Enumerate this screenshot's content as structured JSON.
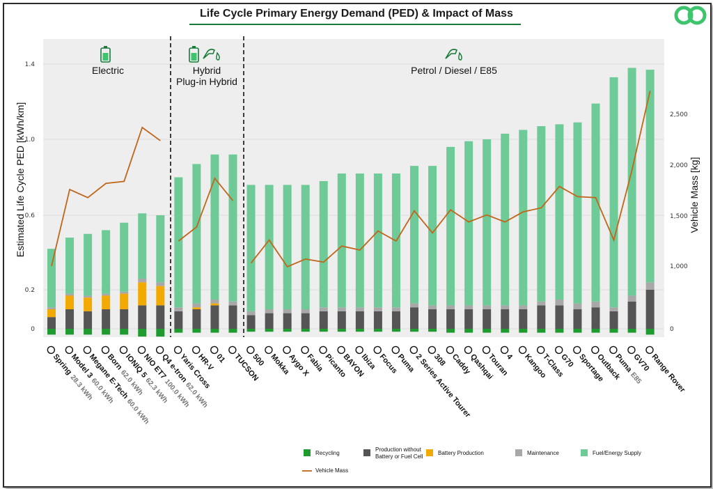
{
  "title": "Life Cycle Primary Energy Demand (PED) & Impact of Mass",
  "colors": {
    "recycling": "#1e9a2e",
    "production": "#555555",
    "battery": "#f2a900",
    "maintenance": "#a8a8a8",
    "fuel": "#6ecb98",
    "mass_line": "#c0651a",
    "panel_bg": "#eeeeee",
    "brand_green": "#1a7a3a"
  },
  "sections": [
    {
      "label": "Electric",
      "icon": "battery-icon",
      "start": 0,
      "end": 6
    },
    {
      "label": "Hybrid\nPlug-in Hybrid",
      "icon": "battery-fuel-icon",
      "start": 7,
      "end": 10
    },
    {
      "label": "Petrol / Diesel / E85",
      "icon": "fuel-nozzle-icon",
      "start": 11,
      "end": 33
    }
  ],
  "chart_data": {
    "type": "bar",
    "stacked": true,
    "xlabel": "",
    "ylabel": "Estimated Life Cycle PED [kWh/km]",
    "y2label": "Vehicle Mass [kg]",
    "yticks": [
      "0",
      "0.2",
      "0.6",
      "1.0",
      "1.4"
    ],
    "ytick_values": [
      0,
      0.2,
      0.6,
      1.0,
      1.4
    ],
    "y2ticks": [
      "0",
      "1,000",
      "1,500",
      "2,000",
      "2,500"
    ],
    "y2tick_values": [
      0,
      1000,
      1500,
      2000,
      2500
    ],
    "y2lim": [
      0,
      3000
    ],
    "grid": true,
    "legend_position": "bottom-right",
    "categories": [
      {
        "brand_icon": "dacia-logo",
        "name": "Spring",
        "sub": "28.3 kWh"
      },
      {
        "brand_icon": "tesla-logo",
        "name": "Model 3",
        "sub": "60.0 kWh"
      },
      {
        "brand_icon": "renault-logo",
        "name": "Megane E-Tech",
        "sub": "60.0 kWh"
      },
      {
        "brand_icon": "cupra-logo",
        "name": "Born",
        "sub": "62.0 kWh"
      },
      {
        "brand_icon": "hyundai-logo",
        "name": "IONIQ 5",
        "sub": "62.3 kWh"
      },
      {
        "brand_icon": "nio-logo",
        "name": "NIO ET7",
        "sub": "100.0 kWh"
      },
      {
        "brand_icon": "audi-logo",
        "name": "Q4 e-tron",
        "sub": "62.0 kWh"
      },
      {
        "brand_icon": "toyota-logo",
        "name": "Yaris Cross",
        "sub": ""
      },
      {
        "brand_icon": "honda-logo",
        "name": "HR-V",
        "sub": ""
      },
      {
        "brand_icon": "lynkco-logo",
        "name": "01",
        "sub": ""
      },
      {
        "brand_icon": "hyundai-logo",
        "name": "TUCSON",
        "sub": ""
      },
      {
        "brand_icon": "fiat-logo",
        "name": "500",
        "sub": ""
      },
      {
        "brand_icon": "opel-logo",
        "name": "Mokka",
        "sub": ""
      },
      {
        "brand_icon": "toyota-logo",
        "name": "Aygo X",
        "sub": ""
      },
      {
        "brand_icon": "skoda-logo",
        "name": "Fabia",
        "sub": ""
      },
      {
        "brand_icon": "kia-logo",
        "name": "Picanto",
        "sub": ""
      },
      {
        "brand_icon": "hyundai-logo",
        "name": "BAYON",
        "sub": ""
      },
      {
        "brand_icon": "seat-logo",
        "name": "Ibiza",
        "sub": ""
      },
      {
        "brand_icon": "ford-logo",
        "name": "Focus",
        "sub": ""
      },
      {
        "brand_icon": "ford-logo",
        "name": "Puma",
        "sub": ""
      },
      {
        "brand_icon": "bmw-logo",
        "name": "2 Series Active Tourer",
        "sub": ""
      },
      {
        "brand_icon": "peugeot-logo",
        "name": "308",
        "sub": ""
      },
      {
        "brand_icon": "vw-logo",
        "name": "Caddy",
        "sub": ""
      },
      {
        "brand_icon": "nissan-logo",
        "name": "Qashqai",
        "sub": ""
      },
      {
        "brand_icon": "vw-logo",
        "name": "Touran",
        "sub": ""
      },
      {
        "brand_icon": "bmw-m-logo",
        "name": "4",
        "sub": ""
      },
      {
        "brand_icon": "renault-logo",
        "name": "Kangoo",
        "sub": ""
      },
      {
        "brand_icon": "mercedes-logo",
        "name": "T-Class",
        "sub": ""
      },
      {
        "brand_icon": "genesis-logo",
        "name": "G70",
        "sub": ""
      },
      {
        "brand_icon": "kia-logo",
        "name": "Sportage",
        "sub": ""
      },
      {
        "brand_icon": "subaru-logo",
        "name": "Outback",
        "sub": ""
      },
      {
        "brand_icon": "ford-logo",
        "name": "Puma",
        "sub": "E85"
      },
      {
        "brand_icon": "genesis-logo",
        "name": "GV70",
        "sub": ""
      },
      {
        "brand_icon": "landrover-logo",
        "name": "Range Rover",
        "sub": ""
      }
    ],
    "series": [
      {
        "name": "Recycling",
        "key": "recycling",
        "values": [
          -0.03,
          -0.03,
          -0.03,
          -0.03,
          -0.03,
          -0.04,
          -0.04,
          -0.02,
          -0.02,
          -0.02,
          -0.02,
          -0.015,
          -0.015,
          -0.015,
          -0.015,
          -0.015,
          -0.015,
          -0.015,
          -0.015,
          -0.015,
          -0.015,
          -0.015,
          -0.02,
          -0.02,
          -0.02,
          -0.02,
          -0.02,
          -0.02,
          -0.02,
          -0.02,
          -0.02,
          -0.02,
          -0.02,
          -0.03
        ]
      },
      {
        "name": "Production without Battery or Fuel Cell",
        "key": "production",
        "values": [
          0.06,
          0.1,
          0.09,
          0.1,
          0.1,
          0.12,
          0.12,
          0.09,
          0.1,
          0.12,
          0.12,
          0.07,
          0.08,
          0.08,
          0.08,
          0.09,
          0.09,
          0.09,
          0.09,
          0.09,
          0.11,
          0.1,
          0.1,
          0.1,
          0.1,
          0.1,
          0.1,
          0.12,
          0.12,
          0.1,
          0.11,
          0.09,
          0.14,
          0.2
        ]
      },
      {
        "name": "Battery Production",
        "key": "battery",
        "values": [
          0.04,
          0.07,
          0.07,
          0.07,
          0.08,
          0.12,
          0.1,
          0,
          0.01,
          0.01,
          0,
          0,
          0,
          0,
          0,
          0,
          0,
          0,
          0,
          0,
          0,
          0,
          0,
          0,
          0,
          0,
          0,
          0,
          0,
          0,
          0,
          0,
          0,
          0
        ]
      },
      {
        "name": "Maintenance",
        "key": "maintenance",
        "values": [
          0.01,
          0.01,
          0.01,
          0.01,
          0.01,
          0.02,
          0.02,
          0.02,
          0.02,
          0.02,
          0.02,
          0.02,
          0.02,
          0.02,
          0.02,
          0.02,
          0.02,
          0.02,
          0.02,
          0.02,
          0.02,
          0.02,
          0.02,
          0.02,
          0.02,
          0.02,
          0.02,
          0.02,
          0.03,
          0.03,
          0.03,
          0.02,
          0.03,
          0.04
        ]
      },
      {
        "name": "Fuel/Energy Supply",
        "key": "fuel",
        "values": [
          0.31,
          0.3,
          0.33,
          0.34,
          0.37,
          0.35,
          0.36,
          0.69,
          0.74,
          0.77,
          0.78,
          0.67,
          0.66,
          0.66,
          0.66,
          0.67,
          0.71,
          0.71,
          0.71,
          0.71,
          0.73,
          0.74,
          0.84,
          0.87,
          0.88,
          0.91,
          0.93,
          0.93,
          0.93,
          0.96,
          1.05,
          1.22,
          1.21,
          1.13
        ]
      },
      {
        "name": "Vehicle Mass",
        "key": "mass",
        "axis": "right",
        "type": "line",
        "values": [
          1000,
          1760,
          1680,
          1820,
          1840,
          2370,
          2240,
          1250,
          1390,
          1870,
          1650,
          1030,
          1260,
          990,
          1070,
          1040,
          1200,
          1160,
          1350,
          1250,
          1550,
          1330,
          1560,
          1440,
          1510,
          1440,
          1540,
          1580,
          1790,
          1690,
          1680,
          1260,
          1950,
          2730
        ]
      }
    ]
  },
  "legend": [
    {
      "key": "recycling",
      "label": "Recycling",
      "kind": "box"
    },
    {
      "key": "production",
      "label": "Production without\nBattery or Fuel Cell",
      "kind": "box"
    },
    {
      "key": "battery",
      "label": "Battery Production",
      "kind": "box"
    },
    {
      "key": "maintenance",
      "label": "Maintenance",
      "kind": "box"
    },
    {
      "key": "fuel",
      "label": "Fuel/Energy Supply",
      "kind": "box"
    },
    {
      "key": "mass_line",
      "label": "Vehicle Mass",
      "kind": "line"
    }
  ]
}
